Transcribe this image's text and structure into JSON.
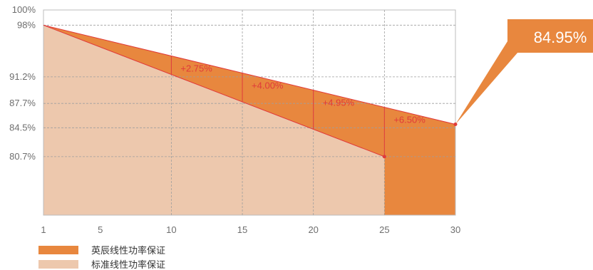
{
  "chart_data": {
    "type": "area",
    "x_ticks": [
      1,
      5,
      10,
      15,
      20,
      25,
      30
    ],
    "x_grid": [
      10,
      15,
      20,
      25
    ],
    "y_ticks": [
      {
        "value": 100,
        "label": "100%"
      },
      {
        "value": 98,
        "label": "98%"
      },
      {
        "value": 91.2,
        "label": "91.2%"
      },
      {
        "value": 87.7,
        "label": "87.7%"
      },
      {
        "value": 84.5,
        "label": "84.5%"
      },
      {
        "value": 80.7,
        "label": "80.7%"
      }
    ],
    "xlim": [
      1,
      30
    ],
    "ylim": [
      73.0,
      100
    ],
    "series": [
      {
        "name": "英辰线性功率保证",
        "x": [
          1,
          30
        ],
        "values": [
          98,
          84.95
        ],
        "color": "#e8873e"
      },
      {
        "name": "标准线性功率保证",
        "x": [
          1,
          25
        ],
        "values": [
          98,
          80.7
        ],
        "color": "#edc8ad"
      }
    ],
    "annotations": [
      {
        "x": 10,
        "label": "+2.75%"
      },
      {
        "x": 15,
        "label": "+4.00%"
      },
      {
        "x": 20,
        "label": "+4.95%"
      },
      {
        "x": 25,
        "label": "+6.50%"
      }
    ],
    "callout": {
      "x": 30,
      "value": 84.95,
      "label": "84.95%"
    },
    "colors": {
      "upper_fill": "#e8873e",
      "lower_fill": "#edc8ad",
      "line": "#e03a3a",
      "grid": "#9e9e9e",
      "frame": "#bdbdbd"
    },
    "legend_position": "bottom-left"
  }
}
